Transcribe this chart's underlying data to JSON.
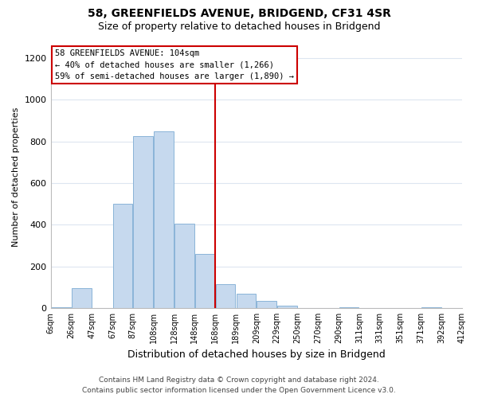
{
  "title_line1": "58, GREENFIELDS AVENUE, BRIDGEND, CF31 4SR",
  "title_line2": "Size of property relative to detached houses in Bridgend",
  "xlabel": "Distribution of detached houses by size in Bridgend",
  "ylabel": "Number of detached properties",
  "bar_heights": [
    5,
    95,
    0,
    500,
    825,
    850,
    405,
    260,
    115,
    70,
    35,
    10,
    0,
    0,
    5,
    0,
    0,
    0,
    5,
    0
  ],
  "bar_color": "#c6d9ee",
  "bar_edgecolor": "#8ab4d8",
  "vline_x": 8,
  "vline_color": "#cc0000",
  "ylim": [
    0,
    1260
  ],
  "yticks": [
    0,
    200,
    400,
    600,
    800,
    1000,
    1200
  ],
  "annotation_text": "58 GREENFIELDS AVENUE: 104sqm\n← 40% of detached houses are smaller (1,266)\n59% of semi-detached houses are larger (1,890) →",
  "annotation_box_edgecolor": "#cc0000",
  "annotation_box_facecolor": "#ffffff",
  "footer_line1": "Contains HM Land Registry data © Crown copyright and database right 2024.",
  "footer_line2": "Contains public sector information licensed under the Open Government Licence v3.0.",
  "tick_labels": [
    "6sqm",
    "26sqm",
    "47sqm",
    "67sqm",
    "87sqm",
    "108sqm",
    "128sqm",
    "148sqm",
    "168sqm",
    "189sqm",
    "209sqm",
    "229sqm",
    "250sqm",
    "270sqm",
    "290sqm",
    "311sqm",
    "331sqm",
    "351sqm",
    "371sqm",
    "392sqm",
    "412sqm"
  ],
  "background_color": "#ffffff",
  "grid_color": "#dde5f0",
  "title_fontsize": 10,
  "subtitle_fontsize": 9,
  "xlabel_fontsize": 9,
  "ylabel_fontsize": 8,
  "tick_fontsize": 7,
  "annotation_fontsize": 7.5,
  "footer_fontsize": 6.5
}
